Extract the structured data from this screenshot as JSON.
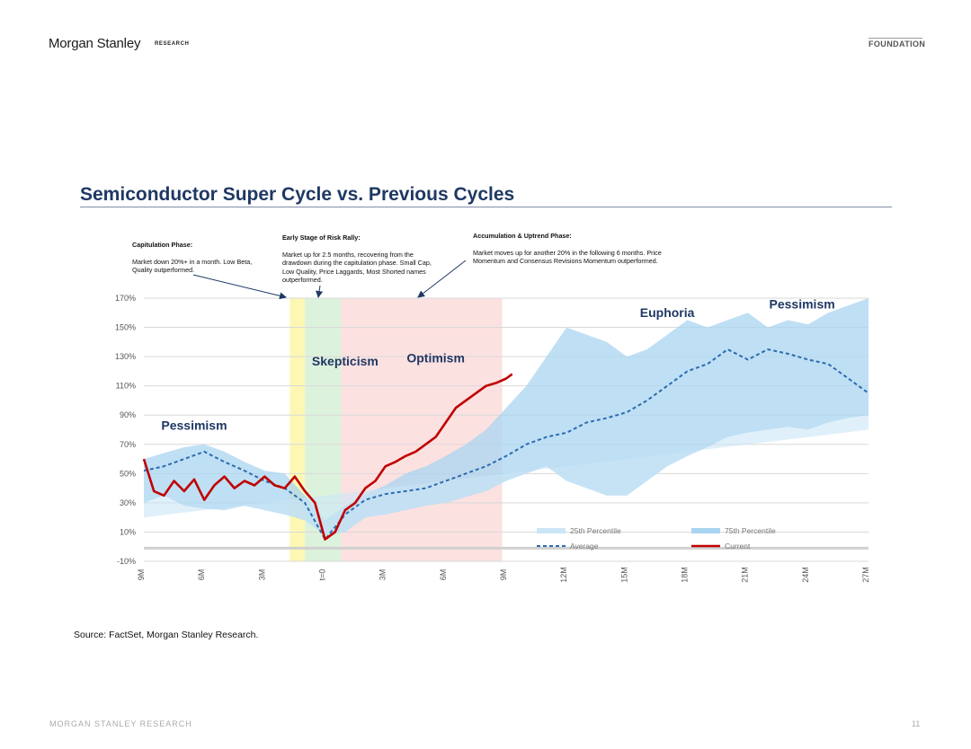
{
  "header": {
    "brand": "Morgan Stanley",
    "brand_sub": "RESEARCH",
    "tag": "FOUNDATION"
  },
  "title": "Semiconductor Super Cycle vs. Previous Cycles",
  "annotations": [
    {
      "heading": "Capitulation Phase:",
      "body": "Market down 20%+ in a month. Low Beta, Quality outperformed."
    },
    {
      "heading": "Early Stage of Risk Rally:",
      "body": "Market up for 2.5 months, recovering from the drawdown during the capitulation phase. Small Cap, Low Quality, Price Laggards, Most Shorted names outperformed."
    },
    {
      "heading": "Accumulation & Uptrend Phase:",
      "body": "Market moves up for another 20% in the following 6 months. Price Momentum and Consensus Revisions Momentum outperformed."
    }
  ],
  "chart_data": {
    "type": "line",
    "title": "Semiconductor Super Cycle vs. Previous Cycles",
    "y_ticks": [
      "170%",
      "150%",
      "130%",
      "110%",
      "90%",
      "70%",
      "50%",
      "30%",
      "10%",
      "-10%"
    ],
    "ylim": [
      -10,
      170
    ],
    "x_ticks": [
      "9M",
      "6M",
      "3M",
      "t=0",
      "3M",
      "6M",
      "9M",
      "12M",
      "15M",
      "18M",
      "21M",
      "24M",
      "27M"
    ],
    "xlim": [
      -9,
      27
    ],
    "phases": [
      {
        "label": "Pessimism",
        "x": -6.5,
        "y": 80
      },
      {
        "label": "Skepticism",
        "x": 1,
        "y": 124
      },
      {
        "label": "Optimism",
        "x": 5.5,
        "y": 126
      },
      {
        "label": "Euphoria",
        "x": 17,
        "y": 157
      },
      {
        "label": "Pessimism",
        "x": 23.7,
        "y": 163
      }
    ],
    "shaded_regions": [
      {
        "name": "capitulation",
        "from": -1.75,
        "to": -1.0,
        "color": "#fbf7a6"
      },
      {
        "name": "early-rally",
        "from": -1.0,
        "to": 0.8,
        "color": "#d7f0d6"
      },
      {
        "name": "uptrend",
        "from": 0.8,
        "to": 8.8,
        "color": "#fbdcdc"
      }
    ],
    "series": [
      {
        "name": "25th Percentile",
        "color": "#cce6f6",
        "x": [
          -9,
          -8,
          -7,
          -6,
          -5,
          -4,
          -3,
          -2,
          -1,
          0,
          1,
          2,
          3,
          4,
          5,
          6,
          7,
          8,
          9,
          10,
          11,
          12,
          13,
          14,
          15,
          16,
          17,
          18,
          19,
          20,
          21,
          22,
          23,
          24,
          25,
          26,
          27
        ],
        "values": [
          30,
          35,
          28,
          26,
          25,
          28,
          25,
          22,
          18,
          8,
          10,
          20,
          22,
          25,
          28,
          30,
          34,
          38,
          45,
          50,
          55,
          45,
          40,
          35,
          35,
          45,
          55,
          62,
          68,
          75,
          78,
          80,
          82,
          80,
          85,
          88,
          90
        ]
      },
      {
        "name": "75th Percentile",
        "color": "#a9d4f0",
        "x": [
          -9,
          -8,
          -7,
          -6,
          -5,
          -4,
          -3,
          -2,
          -1,
          0,
          1,
          2,
          3,
          4,
          5,
          6,
          7,
          8,
          9,
          10,
          11,
          12,
          13,
          14,
          15,
          16,
          17,
          18,
          19,
          20,
          21,
          22,
          23,
          24,
          25,
          26,
          27
        ],
        "values": [
          60,
          64,
          68,
          70,
          65,
          58,
          52,
          50,
          35,
          18,
          28,
          36,
          42,
          50,
          55,
          62,
          70,
          80,
          95,
          110,
          130,
          150,
          145,
          140,
          130,
          135,
          145,
          155,
          150,
          155,
          160,
          150,
          155,
          152,
          160,
          165,
          170
        ]
      },
      {
        "name": "Average",
        "color": "#2b6cb0",
        "x": [
          -9,
          -8,
          -7,
          -6,
          -5,
          -4,
          -3,
          -2,
          -1,
          0,
          1,
          2,
          3,
          4,
          5,
          6,
          7,
          8,
          9,
          10,
          11,
          12,
          13,
          14,
          15,
          16,
          17,
          18,
          19,
          20,
          21,
          22,
          23,
          24,
          25,
          26,
          27
        ],
        "values": [
          52,
          55,
          60,
          65,
          58,
          52,
          45,
          40,
          30,
          5,
          22,
          32,
          36,
          38,
          40,
          45,
          50,
          55,
          62,
          70,
          75,
          78,
          85,
          88,
          92,
          100,
          110,
          120,
          125,
          135,
          128,
          135,
          132,
          128,
          125,
          115,
          105
        ]
      },
      {
        "name": "Current",
        "color": "#c00000",
        "x": [
          -9,
          -8.5,
          -8,
          -7.5,
          -7,
          -6.5,
          -6,
          -5.5,
          -5,
          -4.5,
          -4,
          -3.5,
          -3,
          -2.5,
          -2,
          -1.5,
          -1,
          -0.5,
          0,
          0.5,
          1,
          1.5,
          2,
          2.5,
          3,
          3.5,
          4,
          4.5,
          5,
          5.5,
          6,
          6.5,
          7,
          7.5,
          8,
          8.5,
          9,
          9.3
        ],
        "values": [
          60,
          38,
          35,
          45,
          38,
          46,
          32,
          42,
          48,
          40,
          45,
          42,
          48,
          42,
          40,
          48,
          38,
          30,
          5,
          10,
          25,
          30,
          40,
          45,
          55,
          58,
          62,
          65,
          70,
          75,
          85,
          95,
          100,
          105,
          110,
          112,
          115,
          118
        ]
      }
    ],
    "legend": [
      "25th Percentile",
      "75th Percentile",
      "Average",
      "Current"
    ]
  },
  "source": "Source: FactSet, Morgan Stanley Research.",
  "footer": "MORGAN STANLEY RESEARCH",
  "page_number": "11"
}
